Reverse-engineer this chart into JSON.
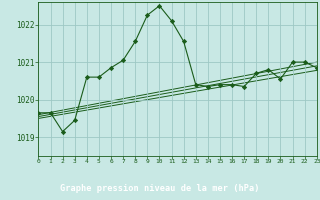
{
  "title": "Graphe pression niveau de la mer (hPa)",
  "background_color": "#c8e8e4",
  "plot_bg_color": "#c8e8e4",
  "grid_color": "#9dc8c4",
  "line_color": "#1a5c1a",
  "marker_color": "#1a5c1a",
  "bottom_bar_color": "#2a6b2a",
  "bottom_bar_text_color": "#c8e8e4",
  "xlim": [
    0,
    23
  ],
  "ylim": [
    1018.5,
    1022.6
  ],
  "yticks": [
    1019,
    1020,
    1021,
    1022
  ],
  "xticks": [
    0,
    1,
    2,
    3,
    4,
    5,
    6,
    7,
    8,
    9,
    10,
    11,
    12,
    13,
    14,
    15,
    16,
    17,
    18,
    19,
    20,
    21,
    22,
    23
  ],
  "main_series": {
    "x": [
      0,
      1,
      2,
      3,
      4,
      5,
      6,
      7,
      8,
      9,
      10,
      11,
      12,
      13,
      14,
      15,
      16,
      17,
      18,
      19,
      20,
      21,
      22,
      23
    ],
    "y": [
      1019.65,
      1019.65,
      1019.15,
      1019.45,
      1020.6,
      1020.6,
      1020.85,
      1021.05,
      1021.55,
      1022.25,
      1022.5,
      1022.1,
      1021.55,
      1020.4,
      1020.35,
      1020.4,
      1020.4,
      1020.35,
      1020.7,
      1020.8,
      1020.55,
      1021.0,
      1021.0,
      1020.85
    ]
  },
  "trend_lines": [
    {
      "x": [
        0,
        23
      ],
      "y": [
        1019.6,
        1021.0
      ]
    },
    {
      "x": [
        0,
        23
      ],
      "y": [
        1019.55,
        1020.9
      ]
    },
    {
      "x": [
        0,
        23
      ],
      "y": [
        1019.5,
        1020.78
      ]
    }
  ]
}
